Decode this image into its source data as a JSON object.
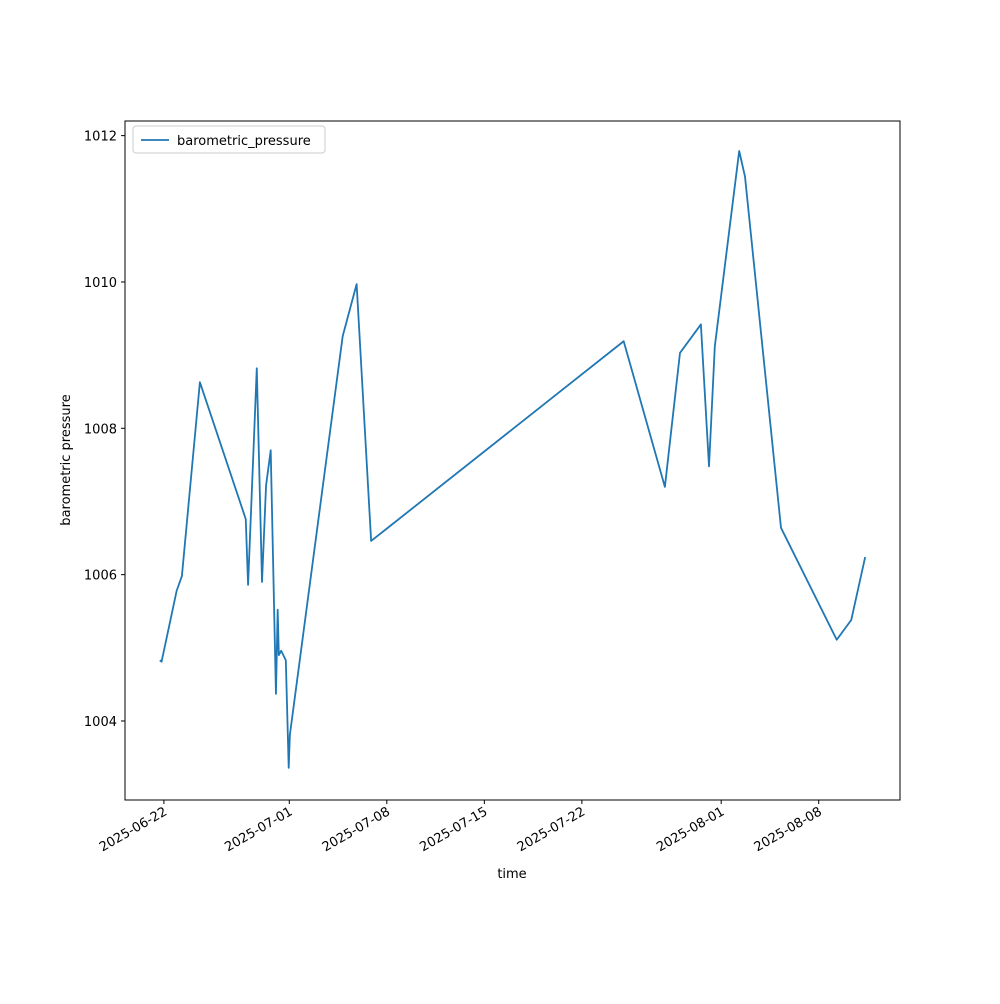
{
  "chart_data": {
    "type": "line",
    "x_label": "time",
    "y_label": "barometric pressure",
    "x": [
      "2025-06-21T17:00",
      "2025-06-21T20:00",
      "2025-06-22T22:00",
      "2025-06-23T07:00",
      "2025-06-24T14:00",
      "2025-06-27T21:00",
      "2025-06-28T01:00",
      "2025-06-28T16:00",
      "2025-06-29T01:00",
      "2025-06-29T08:00",
      "2025-06-29T16:00",
      "2025-06-30T01:00",
      "2025-06-30T04:00",
      "2025-06-30T06:00",
      "2025-06-30T10:00",
      "2025-06-30T18:00",
      "2025-06-30T23:00",
      "2025-07-01T01:00",
      "2025-07-04T20:00",
      "2025-07-05T20:00",
      "2025-07-06T21:00",
      "2025-07-25T00:00",
      "2025-07-27T23:00",
      "2025-07-29T01:00",
      "2025-07-30T13:00",
      "2025-07-31T03:00",
      "2025-07-31T13:00",
      "2025-08-02T07:00",
      "2025-08-02T17:00",
      "2025-08-05T07:00",
      "2025-08-09T07:00",
      "2025-08-10T08:00",
      "2025-08-11T08:00"
    ],
    "series": [
      {
        "name": "barometric_pressure",
        "color": "#1f77b4",
        "values": [
          1004.83,
          1004.81,
          1005.78,
          1005.98,
          1008.63,
          1006.76,
          1005.86,
          1008.82,
          1005.9,
          1007.22,
          1007.7,
          1004.37,
          1005.52,
          1004.9,
          1004.96,
          1004.83,
          1003.36,
          1003.81,
          1009.26,
          1009.97,
          1006.46,
          1009.19,
          1007.2,
          1009.03,
          1009.42,
          1007.48,
          1009.12,
          1011.79,
          1011.44,
          1006.64,
          1005.11,
          1005.38,
          1006.24
        ]
      }
    ],
    "xlim": [
      "2025-06-19T05:00",
      "2025-08-13T20:00"
    ],
    "xticks": [
      "2025-06-22",
      "2025-07-01",
      "2025-07-08",
      "2025-07-15",
      "2025-07-22",
      "2025-08-01",
      "2025-08-08"
    ],
    "ylim": [
      1002.92,
      1012.2
    ],
    "yticks": [
      1004,
      1006,
      1008,
      1010,
      1012
    ],
    "legend": "upper-left",
    "grid": false
  }
}
